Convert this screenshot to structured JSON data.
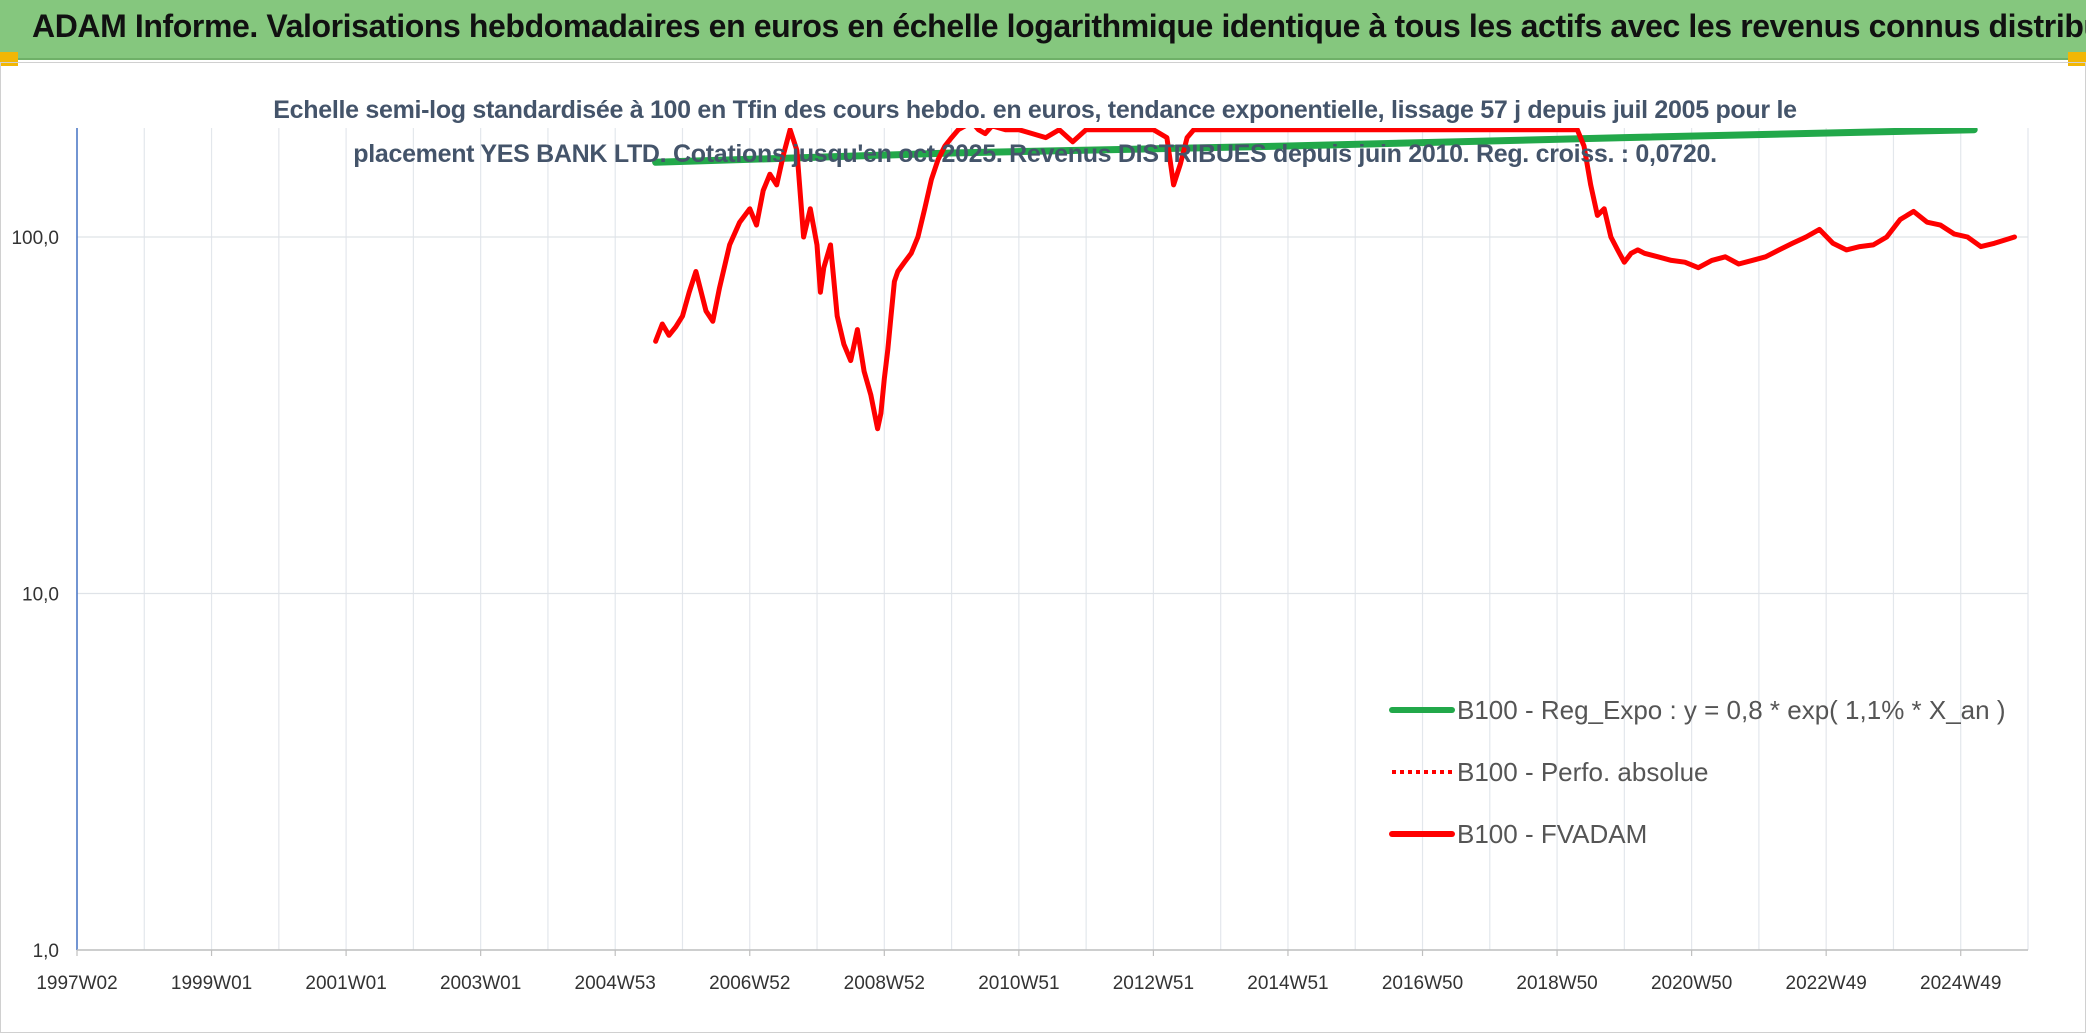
{
  "header": {
    "title": "ADAM Informe. Valorisations hebdomadaires en euros en échelle logarithmique identique à tous les actifs avec les revenus connus distribués"
  },
  "chart_data": {
    "type": "line",
    "title_line1": "Echelle semi-log standardisée à 100 en Tfin des cours hebdo. en euros, tendance exponentielle, lissage 57 j depuis juil 2005 pour le",
    "title_line2": "placement YES BANK LTD. Cotations jusqu'en oct 2025. Revenus DISTRIBUES depuis juin 2010. Reg. croiss. : 0,0720.",
    "y_scale": "log",
    "ylim": [
      1,
      200
    ],
    "xlim": [
      1997.0,
      2026.0
    ],
    "y_ticks": [
      {
        "value": 1,
        "label": "1,0"
      },
      {
        "value": 10,
        "label": "10,0"
      },
      {
        "value": 100,
        "label": "100,0"
      }
    ],
    "x_ticks": [
      {
        "value": 1997.0,
        "label": "1997W02"
      },
      {
        "value": 1999.0,
        "label": "1999W01"
      },
      {
        "value": 2001.0,
        "label": "2001W01"
      },
      {
        "value": 2003.0,
        "label": "2003W01"
      },
      {
        "value": 2005.0,
        "label": "2004W53"
      },
      {
        "value": 2007.0,
        "label": "2006W52"
      },
      {
        "value": 2009.0,
        "label": "2008W52"
      },
      {
        "value": 2011.0,
        "label": "2010W51"
      },
      {
        "value": 2013.0,
        "label": "2012W51"
      },
      {
        "value": 2015.0,
        "label": "2014W51"
      },
      {
        "value": 2017.0,
        "label": "2016W50"
      },
      {
        "value": 2019.0,
        "label": "2018W50"
      },
      {
        "value": 2021.0,
        "label": "2020W50"
      },
      {
        "value": 2023.0,
        "label": "2022W49"
      },
      {
        "value": 2025.0,
        "label": "2024W49"
      }
    ],
    "grid": true,
    "legend_position": "bottom-right",
    "series": [
      {
        "name": "B100 - Reg_Expo : y = 0,8 * exp( 1,1% *  X_an )",
        "color": "#22a84a",
        "style": "solid",
        "x": [
          2005.6,
          2010,
          2015,
          2020,
          2025.2
        ],
        "y": [
          162,
          172,
          180,
          190,
          200
        ]
      },
      {
        "name": "B100 - Perfo. absolue",
        "color": "#ff0000",
        "style": "dotted",
        "x": [],
        "y": []
      },
      {
        "name": "B100 - FVADAM",
        "color": "#ff0000",
        "style": "solid",
        "x": [
          2005.6,
          2005.7,
          2005.8,
          2005.9,
          2006.0,
          2006.1,
          2006.2,
          2006.35,
          2006.45,
          2006.55,
          2006.7,
          2006.85,
          2007.0,
          2007.1,
          2007.2,
          2007.3,
          2007.4,
          2007.5,
          2007.6,
          2007.7,
          2007.8,
          2007.9,
          2008.0,
          2008.05,
          2008.1,
          2008.2,
          2008.3,
          2008.4,
          2008.5,
          2008.6,
          2008.7,
          2008.8,
          2008.9,
          2008.95,
          2009.0,
          2009.05,
          2009.1,
          2009.15,
          2009.2,
          2009.3,
          2009.4,
          2009.5,
          2009.6,
          2009.7,
          2009.8,
          2009.9,
          2010.0,
          2010.1,
          2010.2,
          2010.3,
          2010.4,
          2010.5,
          2010.6,
          2010.8,
          2011.0,
          2011.2,
          2011.4,
          2011.6,
          2011.8,
          2012.0,
          2012.4,
          2012.8,
          2013.0,
          2013.2,
          2013.3,
          2013.4,
          2013.5,
          2013.6,
          2013.8,
          2014.2,
          2015.0,
          2016.0,
          2017.0,
          2018.0,
          2018.5,
          2019.0,
          2019.2,
          2019.3,
          2019.4,
          2019.5,
          2019.6,
          2019.7,
          2019.8,
          2019.9,
          2020.0,
          2020.1,
          2020.2,
          2020.3,
          2020.5,
          2020.7,
          2020.9,
          2021.1,
          2021.3,
          2021.5,
          2021.7,
          2021.9,
          2022.1,
          2022.3,
          2022.5,
          2022.7,
          2022.9,
          2023.1,
          2023.3,
          2023.5,
          2023.7,
          2023.9,
          2024.1,
          2024.3,
          2024.5,
          2024.7,
          2024.9,
          2025.1,
          2025.3,
          2025.5,
          2025.65,
          2025.8
        ],
        "y": [
          51,
          57,
          53,
          56,
          60,
          70,
          80,
          62,
          58,
          72,
          95,
          110,
          120,
          108,
          135,
          150,
          140,
          170,
          200,
          175,
          100,
          120,
          95,
          70,
          82,
          95,
          60,
          50,
          45,
          55,
          42,
          36,
          29,
          32,
          40,
          48,
          60,
          75,
          80,
          85,
          90,
          100,
          120,
          145,
          165,
          180,
          190,
          200,
          205,
          210,
          200,
          195,
          205,
          200,
          200,
          195,
          190,
          200,
          185,
          200,
          200,
          200,
          200,
          190,
          140,
          160,
          190,
          200,
          200,
          200,
          200,
          200,
          200,
          200,
          200,
          200,
          200,
          200,
          180,
          140,
          115,
          120,
          100,
          92,
          85,
          90,
          92,
          90,
          88,
          86,
          85,
          82,
          86,
          88,
          84,
          86,
          88,
          92,
          96,
          100,
          105,
          96,
          92,
          94,
          95,
          100,
          112,
          118,
          110,
          108,
          102,
          100,
          94,
          96,
          98,
          100
        ]
      }
    ]
  }
}
